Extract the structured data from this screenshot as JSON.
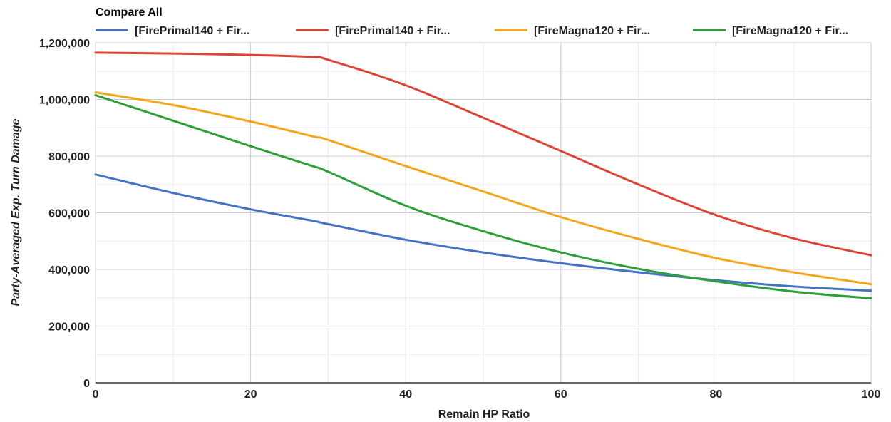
{
  "chart_data": {
    "type": "line",
    "title": "Compare All",
    "xlabel": "Remain HP Ratio",
    "ylabel": "Party-Averaged Exp. Turn Damage",
    "xlim": [
      0,
      100
    ],
    "ylim": [
      0,
      1200000
    ],
    "x_ticks": [
      0,
      20,
      40,
      60,
      80,
      100
    ],
    "y_ticks": [
      0,
      200000,
      400000,
      600000,
      800000,
      1000000,
      1200000
    ],
    "x_tick_labels": [
      "0",
      "20",
      "40",
      "60",
      "80",
      "100"
    ],
    "y_tick_labels": [
      "0",
      "200,000",
      "400,000",
      "600,000",
      "800,000",
      "1,000,000",
      "1,200,000"
    ],
    "grid": true,
    "legend_position": "top",
    "x": [
      0,
      10,
      20,
      28,
      30,
      40,
      50,
      60,
      70,
      80,
      90,
      100
    ],
    "series": [
      {
        "name": "[FirePrimal140 + Fir...",
        "color": "#4472c4",
        "values": [
          735000,
          670000,
          612000,
          572000,
          560000,
          505000,
          460000,
          422000,
          390000,
          362000,
          340000,
          325000
        ]
      },
      {
        "name": "[FirePrimal140 + Fir...",
        "color": "#db4437",
        "values": [
          1165000,
          1162000,
          1157000,
          1150000,
          1140000,
          1050000,
          935000,
          818000,
          700000,
          592000,
          510000,
          450000
        ]
      },
      {
        "name": "[FireMagna120 + Fir...",
        "color": "#f4a51c",
        "values": [
          1025000,
          980000,
          922000,
          870000,
          857000,
          765000,
          675000,
          585000,
          508000,
          440000,
          390000,
          348000
        ]
      },
      {
        "name": "[FireMagna120 + Fir...",
        "color": "#2e9e3a",
        "values": [
          1015000,
          925000,
          835000,
          765000,
          745000,
          625000,
          535000,
          460000,
          402000,
          358000,
          322000,
          298000
        ]
      }
    ]
  }
}
